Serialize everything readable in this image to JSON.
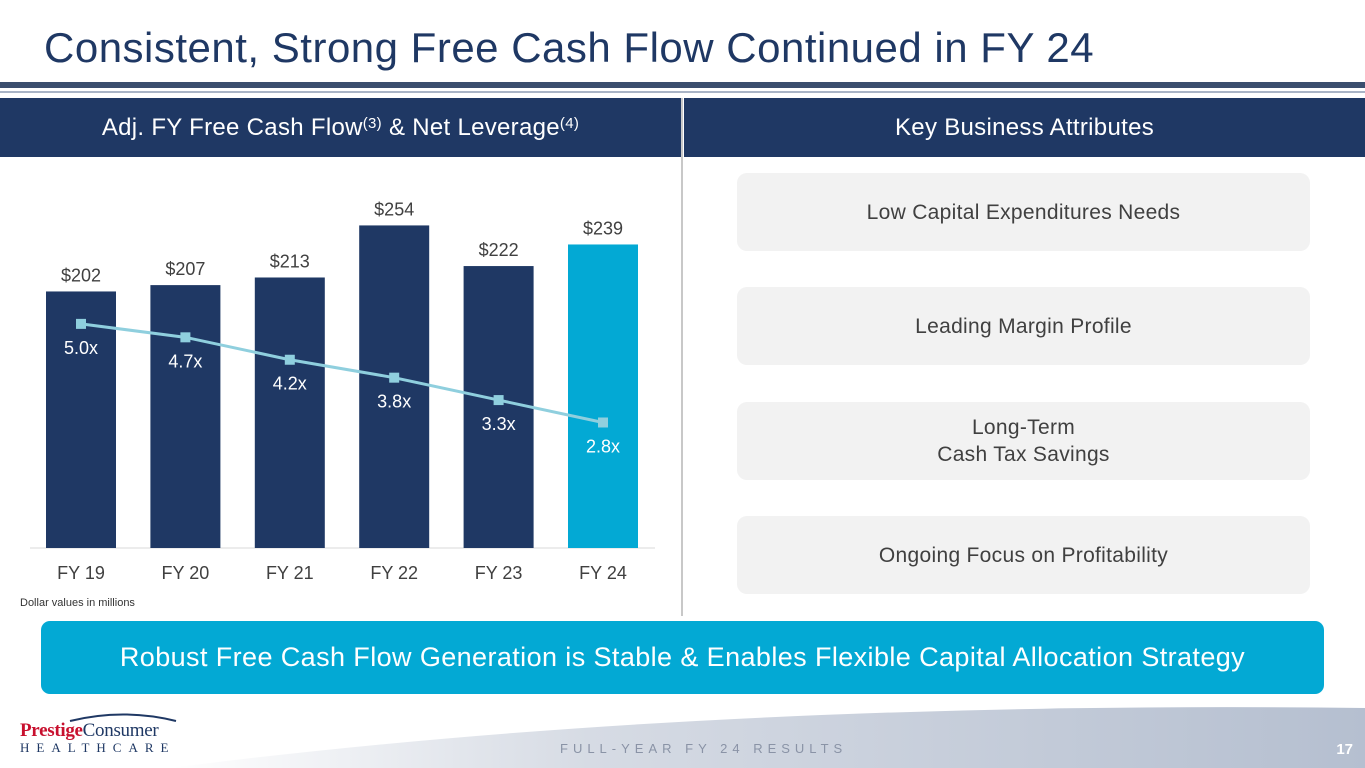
{
  "title": "Consistent, Strong Free Cash Flow Continued in FY 24",
  "left_panel": {
    "header_main": "Adj. FY Free Cash Flow",
    "header_sup1": "(3)",
    "header_mid": " & Net Leverage",
    "header_sup2": "(4)"
  },
  "right_panel": {
    "header": "Key Business Attributes",
    "attributes": [
      "Low Capital Expenditures Needs",
      "Leading Margin Profile",
      "Long-Term\nCash Tax Savings",
      "Ongoing Focus on Profitability"
    ]
  },
  "footnote": "Dollar values in millions",
  "banner": "Robust Free Cash Flow Generation is Stable & Enables Flexible Capital Allocation Strategy",
  "footer": {
    "logo_brand": "Prestige",
    "logo_word": "Consumer",
    "logo_sub": "HEALTHCARE",
    "report_label": "FULL-YEAR FY 24 RESULTS",
    "page_number": "17"
  },
  "chart_data": {
    "type": "bar",
    "title": "Adj. FY Free Cash Flow & Net Leverage",
    "categories": [
      "FY 19",
      "FY 20",
      "FY 21",
      "FY 22",
      "FY 23",
      "FY 24"
    ],
    "series": [
      {
        "name": "Adj. FY Free Cash Flow",
        "type": "bar",
        "values": [
          202,
          207,
          213,
          254,
          222,
          239
        ],
        "labels": [
          "$202",
          "$207",
          "$213",
          "$254",
          "$222",
          "$239"
        ]
      },
      {
        "name": "Net Leverage",
        "type": "line",
        "values": [
          5.0,
          4.7,
          4.2,
          3.8,
          3.3,
          2.8
        ],
        "labels": [
          "5.0x",
          "4.7x",
          "4.2x",
          "3.8x",
          "3.3x",
          "2.8x"
        ]
      }
    ],
    "ylim": [
      0,
      300
    ],
    "y2lim": [
      0,
      8.5
    ],
    "units": "millions",
    "grid": false,
    "colors": {
      "bar": "#1f3864",
      "bar_highlight": "#03a9d4",
      "line": "#8fcfde",
      "label_dark": "#404040",
      "label_light": "#ffffff"
    }
  }
}
